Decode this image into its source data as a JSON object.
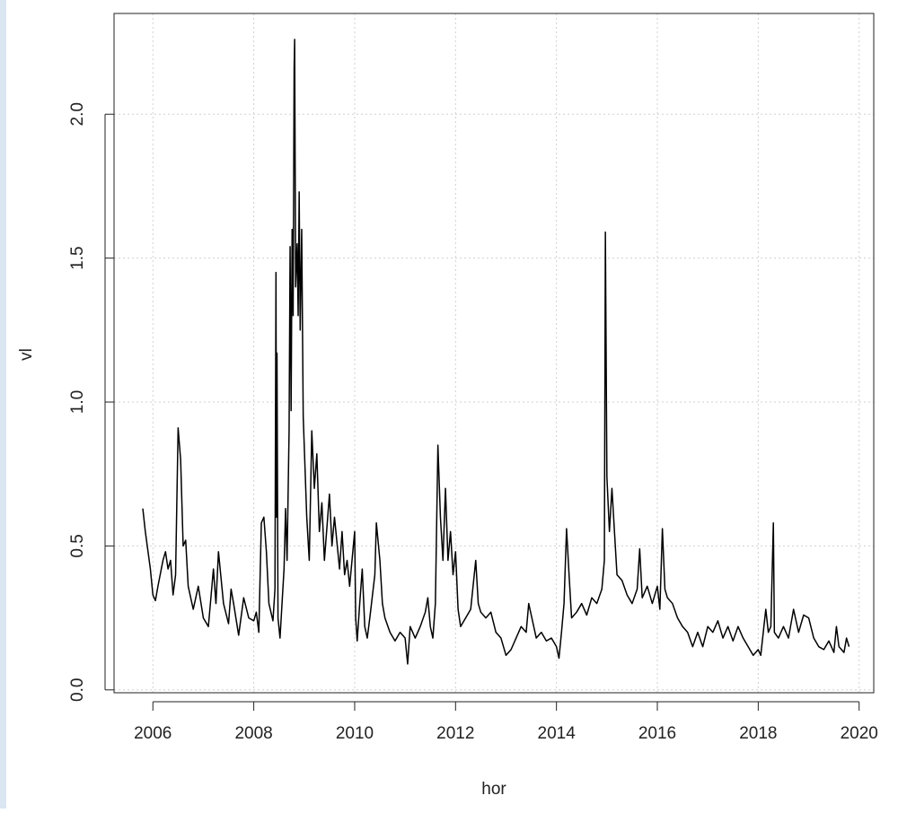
{
  "chart_data": {
    "type": "line",
    "xlabel": "hor",
    "ylabel": "vl",
    "x": [
      2005.8,
      2005.85,
      2005.95,
      2006.0,
      2006.05,
      2006.1,
      2006.2,
      2006.25,
      2006.3,
      2006.35,
      2006.4,
      2006.45,
      2006.5,
      2006.55,
      2006.6,
      2006.65,
      2006.7,
      2006.8,
      2006.9,
      2007.0,
      2007.1,
      2007.2,
      2007.25,
      2007.3,
      2007.4,
      2007.5,
      2007.55,
      2007.6,
      2007.7,
      2007.8,
      2007.9,
      2008.0,
      2008.05,
      2008.1,
      2008.15,
      2008.2,
      2008.25,
      2008.3,
      2008.38,
      2008.42,
      2008.44,
      2008.45,
      2008.46,
      2008.48,
      2008.52,
      2008.56,
      2008.6,
      2008.63,
      2008.66,
      2008.7,
      2008.72,
      2008.74,
      2008.76,
      2008.78,
      2008.8,
      2008.81,
      2008.83,
      2008.86,
      2008.88,
      2008.9,
      2008.92,
      2008.95,
      2008.98,
      2009.0,
      2009.05,
      2009.1,
      2009.15,
      2009.2,
      2009.25,
      2009.3,
      2009.35,
      2009.4,
      2009.5,
      2009.55,
      2009.6,
      2009.7,
      2009.75,
      2009.8,
      2009.85,
      2009.9,
      2010.0,
      2010.02,
      2010.05,
      2010.1,
      2010.15,
      2010.2,
      2010.25,
      2010.3,
      2010.4,
      2010.43,
      2010.5,
      2010.55,
      2010.6,
      2010.7,
      2010.8,
      2010.9,
      2011.0,
      2011.05,
      2011.1,
      2011.2,
      2011.3,
      2011.4,
      2011.45,
      2011.5,
      2011.55,
      2011.6,
      2011.65,
      2011.7,
      2011.75,
      2011.8,
      2011.85,
      2011.9,
      2011.95,
      2012.0,
      2012.05,
      2012.1,
      2012.2,
      2012.3,
      2012.4,
      2012.45,
      2012.5,
      2012.6,
      2012.7,
      2012.8,
      2012.9,
      2013.0,
      2013.1,
      2013.2,
      2013.3,
      2013.4,
      2013.45,
      2013.5,
      2013.6,
      2013.7,
      2013.8,
      2013.9,
      2014.0,
      2014.05,
      2014.1,
      2014.15,
      2014.2,
      2014.25,
      2014.3,
      2014.4,
      2014.5,
      2014.6,
      2014.7,
      2014.8,
      2014.9,
      2014.95,
      2014.97,
      2015.0,
      2015.05,
      2015.1,
      2015.15,
      2015.2,
      2015.3,
      2015.4,
      2015.5,
      2015.6,
      2015.65,
      2015.7,
      2015.8,
      2015.9,
      2016.0,
      2016.05,
      2016.1,
      2016.15,
      2016.2,
      2016.3,
      2016.4,
      2016.5,
      2016.6,
      2016.7,
      2016.8,
      2016.9,
      2017.0,
      2017.1,
      2017.2,
      2017.3,
      2017.4,
      2017.5,
      2017.6,
      2017.7,
      2017.8,
      2017.9,
      2018.0,
      2018.05,
      2018.1,
      2018.15,
      2018.2,
      2018.25,
      2018.3,
      2018.32,
      2018.4,
      2018.5,
      2018.6,
      2018.7,
      2018.8,
      2018.9,
      2019.0,
      2019.1,
      2019.2,
      2019.3,
      2019.4,
      2019.5,
      2019.55,
      2019.6,
      2019.7,
      2019.75,
      2019.8
    ],
    "series": [
      {
        "name": "vl",
        "color": "#000000",
        "values": [
          0.63,
          0.55,
          0.42,
          0.33,
          0.31,
          0.36,
          0.45,
          0.48,
          0.42,
          0.45,
          0.33,
          0.4,
          0.91,
          0.8,
          0.5,
          0.52,
          0.36,
          0.28,
          0.36,
          0.25,
          0.22,
          0.42,
          0.3,
          0.48,
          0.3,
          0.23,
          0.35,
          0.3,
          0.19,
          0.32,
          0.25,
          0.24,
          0.27,
          0.2,
          0.58,
          0.6,
          0.48,
          0.3,
          0.24,
          0.35,
          1.45,
          0.6,
          1.17,
          0.25,
          0.18,
          0.3,
          0.42,
          0.63,
          0.45,
          0.9,
          1.54,
          0.97,
          1.6,
          1.3,
          2.16,
          2.26,
          1.4,
          1.55,
          1.3,
          1.73,
          1.25,
          1.6,
          0.95,
          0.85,
          0.6,
          0.45,
          0.9,
          0.7,
          0.82,
          0.55,
          0.65,
          0.45,
          0.68,
          0.5,
          0.6,
          0.42,
          0.55,
          0.4,
          0.45,
          0.36,
          0.55,
          0.25,
          0.17,
          0.3,
          0.42,
          0.22,
          0.18,
          0.25,
          0.4,
          0.58,
          0.45,
          0.3,
          0.25,
          0.2,
          0.17,
          0.2,
          0.18,
          0.09,
          0.22,
          0.18,
          0.22,
          0.27,
          0.32,
          0.22,
          0.18,
          0.3,
          0.85,
          0.6,
          0.45,
          0.7,
          0.45,
          0.55,
          0.4,
          0.48,
          0.28,
          0.22,
          0.25,
          0.28,
          0.45,
          0.3,
          0.27,
          0.25,
          0.27,
          0.2,
          0.18,
          0.12,
          0.14,
          0.18,
          0.22,
          0.2,
          0.3,
          0.26,
          0.18,
          0.2,
          0.17,
          0.18,
          0.15,
          0.11,
          0.2,
          0.3,
          0.56,
          0.4,
          0.25,
          0.27,
          0.3,
          0.26,
          0.32,
          0.3,
          0.35,
          0.45,
          1.59,
          0.74,
          0.55,
          0.7,
          0.55,
          0.4,
          0.38,
          0.33,
          0.3,
          0.35,
          0.49,
          0.32,
          0.36,
          0.3,
          0.36,
          0.28,
          0.56,
          0.35,
          0.32,
          0.3,
          0.25,
          0.22,
          0.2,
          0.15,
          0.2,
          0.15,
          0.22,
          0.2,
          0.24,
          0.18,
          0.22,
          0.17,
          0.22,
          0.18,
          0.15,
          0.12,
          0.14,
          0.12,
          0.2,
          0.28,
          0.2,
          0.22,
          0.58,
          0.2,
          0.18,
          0.22,
          0.18,
          0.28,
          0.2,
          0.26,
          0.25,
          0.18,
          0.15,
          0.14,
          0.17,
          0.13,
          0.22,
          0.15,
          0.13,
          0.18,
          0.15
        ]
      }
    ],
    "xlim": [
      2005.23,
      2020.29
    ],
    "ylim": [
      -0.01,
      2.35
    ],
    "xticks": [
      2006,
      2008,
      2010,
      2012,
      2014,
      2016,
      2018,
      2020
    ],
    "yticks": [
      {
        "value": 0,
        "label": "0.0"
      },
      {
        "value": 0.5,
        "label": "0.5"
      },
      {
        "value": 1,
        "label": "1.0"
      },
      {
        "value": 1.5,
        "label": "1.5"
      },
      {
        "value": 2,
        "label": "2.0"
      }
    ],
    "grid": true
  }
}
